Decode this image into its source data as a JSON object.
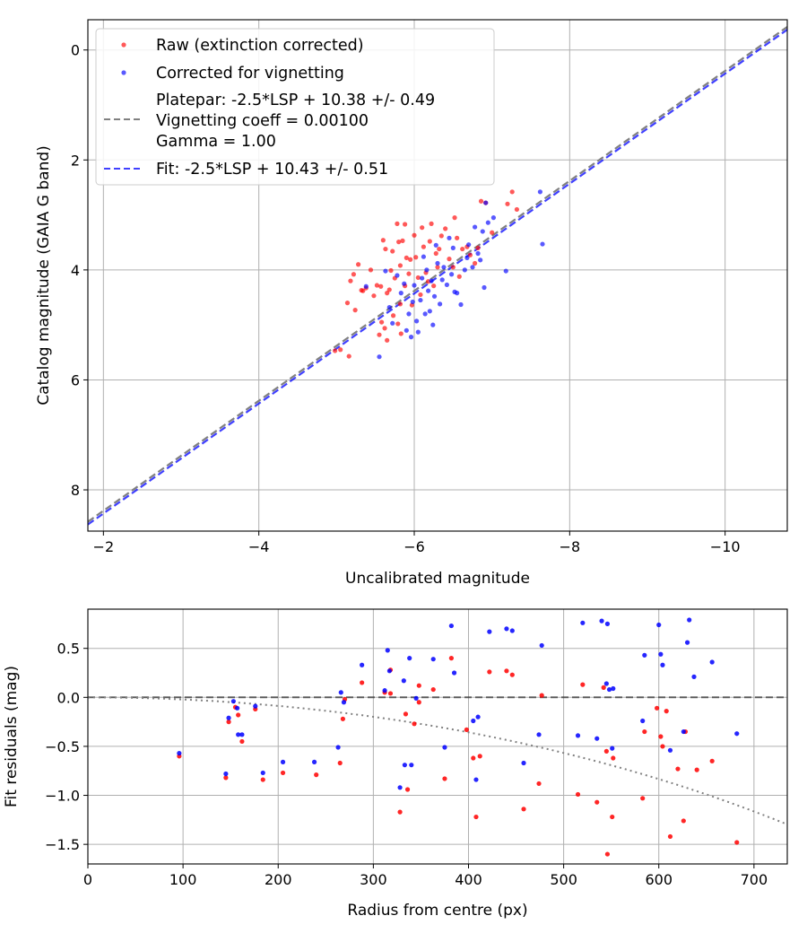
{
  "chart_data": [
    {
      "type": "scatter",
      "xlabel": "Uncalibrated magnitude",
      "ylabel": "Catalog magnitude (GAIA G band)",
      "xlim": [
        -1.8,
        -10.8
      ],
      "ylim": [
        8.75,
        -0.55
      ],
      "x_inverted": true,
      "y_inverted": true,
      "xticks": [
        -2,
        -4,
        -6,
        -8,
        -10
      ],
      "yticks": [
        0,
        2,
        4,
        6,
        8
      ],
      "xtick_labels": [
        "−2",
        "−4",
        "−6",
        "−8",
        "−10"
      ],
      "ytick_labels": [
        "0",
        "2",
        "4",
        "6",
        "8"
      ],
      "grid": true,
      "legend_position": "top-left",
      "legend": [
        {
          "label": "Raw (extinction corrected)",
          "kind": "point",
          "color": "#ff0000"
        },
        {
          "label": "Corrected for vignetting",
          "kind": "point",
          "color": "#0000ff"
        },
        {
          "label": "Platepar: -2.5*LSP + 10.38 +/- 0.49",
          "kind": "dashed-line",
          "color": "#808080"
        },
        {
          "label": "Vignetting coeff = 0.00100",
          "kind": "dashed-line",
          "color": "#808080"
        },
        {
          "label": "Gamma = 1.00",
          "kind": "dashed-line",
          "color": "#808080"
        },
        {
          "label": "Fit: -2.5*LSP + 10.43 +/- 0.51",
          "kind": "dashed-line",
          "color": "#0000ff"
        }
      ],
      "lines": [
        {
          "slope_factor": -2.5,
          "offset": 10.38,
          "color": "#808080",
          "style": "dashed"
        },
        {
          "slope_factor": -2.5,
          "offset": 10.43,
          "color": "#0000ff",
          "style": "dashed"
        }
      ],
      "series": [
        {
          "name": "Raw (extinction corrected)",
          "color": "#ff0000",
          "points": [
            [
              -4.98,
              5.47
            ],
            [
              -5.05,
              5.45
            ],
            [
              -5.14,
              4.6
            ],
            [
              -5.16,
              5.57
            ],
            [
              -5.18,
              4.2
            ],
            [
              -5.22,
              4.08
            ],
            [
              -5.24,
              4.73
            ],
            [
              -5.28,
              3.9
            ],
            [
              -5.32,
              4.37
            ],
            [
              -5.34,
              4.38
            ],
            [
              -5.38,
              4.33
            ],
            [
              -5.44,
              4.0
            ],
            [
              -5.48,
              4.47
            ],
            [
              -5.52,
              4.28
            ],
            [
              -5.55,
              5.18
            ],
            [
              -5.57,
              4.3
            ],
            [
              -5.58,
              4.95
            ],
            [
              -5.6,
              3.46
            ],
            [
              -5.62,
              5.06
            ],
            [
              -5.63,
              3.62
            ],
            [
              -5.65,
              4.42
            ],
            [
              -5.65,
              5.28
            ],
            [
              -5.68,
              4.36
            ],
            [
              -5.7,
              4.01
            ],
            [
              -5.72,
              3.66
            ],
            [
              -5.73,
              4.83
            ],
            [
              -5.75,
              4.15
            ],
            [
              -5.78,
              3.16
            ],
            [
              -5.79,
              4.98
            ],
            [
              -5.8,
              3.49
            ],
            [
              -5.82,
              3.92
            ],
            [
              -5.82,
              4.62
            ],
            [
              -5.83,
              5.16
            ],
            [
              -5.85,
              3.47
            ],
            [
              -5.88,
              4.29
            ],
            [
              -5.88,
              3.17
            ],
            [
              -5.9,
              3.78
            ],
            [
              -5.93,
              4.07
            ],
            [
              -5.95,
              3.81
            ],
            [
              -5.97,
              4.64
            ],
            [
              -6.0,
              3.37
            ],
            [
              -6.02,
              3.77
            ],
            [
              -6.05,
              4.14
            ],
            [
              -6.08,
              4.45
            ],
            [
              -6.1,
              3.23
            ],
            [
              -6.12,
              3.58
            ],
            [
              -6.15,
              4.05
            ],
            [
              -6.18,
              4.21
            ],
            [
              -6.2,
              3.48
            ],
            [
              -6.22,
              3.16
            ],
            [
              -6.25,
              4.29
            ],
            [
              -6.28,
              3.7
            ],
            [
              -6.3,
              3.95
            ],
            [
              -6.32,
              3.62
            ],
            [
              -6.35,
              3.38
            ],
            [
              -6.4,
              3.25
            ],
            [
              -6.45,
              3.8
            ],
            [
              -6.5,
              3.95
            ],
            [
              -6.52,
              3.05
            ],
            [
              -6.55,
              3.42
            ],
            [
              -6.58,
              4.12
            ],
            [
              -6.62,
              3.62
            ],
            [
              -6.68,
              3.58
            ],
            [
              -6.72,
              3.73
            ],
            [
              -6.78,
              3.88
            ],
            [
              -6.82,
              3.6
            ],
            [
              -6.86,
              2.75
            ],
            [
              -6.92,
              2.78
            ],
            [
              -7.0,
              3.32
            ],
            [
              -7.2,
              2.8
            ],
            [
              -7.26,
              2.58
            ],
            [
              -7.32,
              2.9
            ]
          ]
        },
        {
          "name": "Corrected for vignetting",
          "color": "#0000ff",
          "points": [
            [
              -5.38,
              4.3
            ],
            [
              -5.55,
              5.58
            ],
            [
              -5.63,
              4.02
            ],
            [
              -5.68,
              4.68
            ],
            [
              -5.72,
              4.97
            ],
            [
              -5.78,
              4.1
            ],
            [
              -5.83,
              4.42
            ],
            [
              -5.87,
              4.25
            ],
            [
              -5.9,
              5.1
            ],
            [
              -5.93,
              4.8
            ],
            [
              -5.96,
              5.22
            ],
            [
              -5.98,
              4.58
            ],
            [
              -6.0,
              4.28
            ],
            [
              -6.03,
              4.93
            ],
            [
              -6.05,
              5.13
            ],
            [
              -6.08,
              4.55
            ],
            [
              -6.1,
              4.15
            ],
            [
              -6.12,
              3.76
            ],
            [
              -6.14,
              4.8
            ],
            [
              -6.16,
              4.0
            ],
            [
              -6.18,
              4.38
            ],
            [
              -6.2,
              4.75
            ],
            [
              -6.22,
              4.2
            ],
            [
              -6.24,
              5.0
            ],
            [
              -6.26,
              4.48
            ],
            [
              -6.28,
              3.55
            ],
            [
              -6.3,
              3.88
            ],
            [
              -6.33,
              4.62
            ],
            [
              -6.36,
              4.18
            ],
            [
              -6.38,
              3.95
            ],
            [
              -6.42,
              4.27
            ],
            [
              -6.45,
              3.42
            ],
            [
              -6.48,
              4.08
            ],
            [
              -6.5,
              3.6
            ],
            [
              -6.52,
              4.4
            ],
            [
              -6.55,
              4.42
            ],
            [
              -6.6,
              4.63
            ],
            [
              -6.65,
              4.0
            ],
            [
              -6.68,
              3.78
            ],
            [
              -6.7,
              3.54
            ],
            [
              -6.75,
              3.95
            ],
            [
              -6.78,
              3.22
            ],
            [
              -6.82,
              3.7
            ],
            [
              -6.85,
              3.82
            ],
            [
              -6.88,
              3.3
            ],
            [
              -6.9,
              4.32
            ],
            [
              -6.92,
              2.78
            ],
            [
              -6.95,
              3.14
            ],
            [
              -7.02,
              3.05
            ],
            [
              -7.18,
              4.02
            ],
            [
              -7.62,
              2.58
            ],
            [
              -7.65,
              3.53
            ]
          ]
        }
      ]
    },
    {
      "type": "scatter",
      "xlabel": "Radius from centre (px)",
      "ylabel": "Fit residuals (mag)",
      "xlim": [
        0,
        735
      ],
      "ylim": [
        -1.7,
        0.9
      ],
      "xticks": [
        0,
        100,
        200,
        300,
        400,
        500,
        600,
        700
      ],
      "yticks": [
        0.5,
        0.0,
        -0.5,
        -1.0,
        -1.5
      ],
      "xtick_labels": [
        "0",
        "100",
        "200",
        "300",
        "400",
        "500",
        "600",
        "700"
      ],
      "ytick_labels": [
        "0.5",
        "0.0",
        "−0.5",
        "−1.0",
        "−1.5"
      ],
      "grid": true,
      "reference_line": {
        "y": 0,
        "color": "#000000",
        "style": "dashed"
      },
      "vignetting_curve": {
        "coeff": 0.001,
        "color": "#808080",
        "style": "dotted"
      },
      "series": [
        {
          "name": "Raw (extinction corrected)",
          "color": "#ff0000",
          "points": [
            [
              96,
              -0.6
            ],
            [
              145,
              -0.82
            ],
            [
              148,
              -0.25
            ],
            [
              155,
              -0.1
            ],
            [
              158,
              -0.18
            ],
            [
              162,
              -0.45
            ],
            [
              176,
              -0.12
            ],
            [
              184,
              -0.84
            ],
            [
              205,
              -0.77
            ],
            [
              240,
              -0.79
            ],
            [
              265,
              -0.67
            ],
            [
              268,
              -0.22
            ],
            [
              270,
              -0.02
            ],
            [
              288,
              0.15
            ],
            [
              312,
              0.05
            ],
            [
              318,
              0.04
            ],
            [
              318,
              0.28
            ],
            [
              328,
              -1.17
            ],
            [
              334,
              -0.17
            ],
            [
              336,
              -0.94
            ],
            [
              343,
              -0.27
            ],
            [
              348,
              0.12
            ],
            [
              348,
              -0.05
            ],
            [
              363,
              0.08
            ],
            [
              375,
              -0.83
            ],
            [
              382,
              0.4
            ],
            [
              398,
              -0.33
            ],
            [
              405,
              -0.62
            ],
            [
              408,
              -1.22
            ],
            [
              412,
              -0.6
            ],
            [
              422,
              0.26
            ],
            [
              440,
              0.27
            ],
            [
              446,
              0.23
            ],
            [
              458,
              -1.14
            ],
            [
              474,
              -0.88
            ],
            [
              477,
              0.02
            ],
            [
              515,
              -0.99
            ],
            [
              520,
              0.13
            ],
            [
              535,
              -1.07
            ],
            [
              542,
              0.1
            ],
            [
              545,
              -0.55
            ],
            [
              546,
              -1.6
            ],
            [
              551,
              -1.22
            ],
            [
              552,
              -0.62
            ],
            [
              583,
              -1.03
            ],
            [
              585,
              -0.35
            ],
            [
              598,
              -0.11
            ],
            [
              602,
              -0.4
            ],
            [
              604,
              -0.5
            ],
            [
              608,
              -0.14
            ],
            [
              612,
              -1.42
            ],
            [
              620,
              -0.73
            ],
            [
              626,
              -1.26
            ],
            [
              628,
              -0.35
            ],
            [
              640,
              -0.74
            ],
            [
              656,
              -0.65
            ],
            [
              682,
              -1.48
            ]
          ]
        },
        {
          "name": "Corrected for vignetting",
          "color": "#0000ff",
          "points": [
            [
              96,
              -0.57
            ],
            [
              145,
              -0.78
            ],
            [
              148,
              -0.21
            ],
            [
              153,
              -0.04
            ],
            [
              157,
              -0.11
            ],
            [
              158,
              -0.38
            ],
            [
              162,
              -0.38
            ],
            [
              176,
              -0.09
            ],
            [
              184,
              -0.77
            ],
            [
              205,
              -0.66
            ],
            [
              238,
              -0.66
            ],
            [
              263,
              -0.51
            ],
            [
              266,
              0.05
            ],
            [
              269,
              -0.05
            ],
            [
              288,
              0.33
            ],
            [
              312,
              0.07
            ],
            [
              315,
              0.48
            ],
            [
              317,
              0.27
            ],
            [
              328,
              -0.92
            ],
            [
              332,
              0.17
            ],
            [
              333,
              -0.69
            ],
            [
              338,
              0.4
            ],
            [
              340,
              -0.69
            ],
            [
              345,
              -0.01
            ],
            [
              363,
              0.39
            ],
            [
              375,
              -0.51
            ],
            [
              382,
              0.73
            ],
            [
              385,
              0.25
            ],
            [
              405,
              -0.24
            ],
            [
              408,
              -0.84
            ],
            [
              410,
              -0.2
            ],
            [
              422,
              0.67
            ],
            [
              440,
              0.7
            ],
            [
              446,
              0.68
            ],
            [
              458,
              -0.67
            ],
            [
              474,
              -0.38
            ],
            [
              477,
              0.53
            ],
            [
              515,
              -0.39
            ],
            [
              520,
              0.76
            ],
            [
              535,
              -0.42
            ],
            [
              540,
              0.78
            ],
            [
              545,
              0.14
            ],
            [
              546,
              0.75
            ],
            [
              548,
              0.08
            ],
            [
              551,
              -0.52
            ],
            [
              552,
              0.09
            ],
            [
              583,
              -0.24
            ],
            [
              585,
              0.43
            ],
            [
              600,
              0.74
            ],
            [
              602,
              0.44
            ],
            [
              604,
              0.33
            ],
            [
              612,
              -0.54
            ],
            [
              626,
              -0.35
            ],
            [
              630,
              0.56
            ],
            [
              632,
              0.79
            ],
            [
              637,
              0.21
            ],
            [
              656,
              0.36
            ],
            [
              682,
              -0.37
            ]
          ]
        }
      ]
    }
  ]
}
